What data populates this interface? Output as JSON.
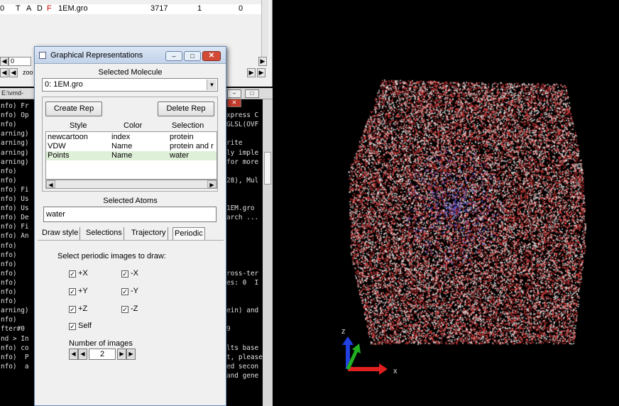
{
  "main_window": {
    "row": {
      "flag_t": "T",
      "flag_a": "A",
      "flag_d": "D",
      "flag_f": "F",
      "molecule": "1EM.gro",
      "atoms": "3717",
      "frames": "1",
      "vol": "0",
      "id": "0"
    },
    "frame_field": "0",
    "zoom_label": "zoo"
  },
  "console": {
    "title": "E:\\vmd-",
    "lines": [
      "nfo) Fr",
      "nfo) Op",
      "nfo)",
      "arning)",
      "arning)",
      "arning)",
      "arning)",
      "nfo)",
      "nfo)",
      "nfo) Fi",
      "nfo) Us",
      "nfo) Us",
      "nfo) De",
      "nfo) Fi",
      "nfo) An",
      "nfo)",
      "nfo)",
      "nfo)",
      "nfo)",
      "nfo)",
      "nfo)",
      "nfo)",
      "arning)",
      "nfo)",
      "fter#0",
      "nd > In",
      "nfo) co",
      "nfo)  P",
      "nfo)  a"
    ],
    "right_lines": [
      {
        "line": 1,
        "text": "xpress C"
      },
      {
        "line": 2,
        "text": "GLSL(OVF"
      },
      {
        "line": 4,
        "text": "rite"
      },
      {
        "line": 5,
        "text": "ly imple"
      },
      {
        "line": 6,
        "text": "for more"
      },
      {
        "line": 8,
        "text": "28), Mul"
      },
      {
        "line": 11,
        "text": "1EM.gro"
      },
      {
        "line": 12,
        "text": "arch ..."
      },
      {
        "line": 18,
        "text": "ross-ter"
      },
      {
        "line": 19,
        "text": "es: 0  I"
      },
      {
        "line": 22,
        "text": "ein) and"
      },
      {
        "line": 24,
        "text": "9"
      },
      {
        "line": 26,
        "text": "lts base"
      },
      {
        "line": 27,
        "text": "t, please"
      },
      {
        "line": 28,
        "text": "ed secon"
      },
      {
        "line": 29,
        "text": "and gene"
      }
    ]
  },
  "dialog": {
    "title": "Graphical Representations",
    "selected_molecule_label": "Selected Molecule",
    "molecule_value": "0: 1EM.gro",
    "create_rep": "Create Rep",
    "delete_rep": "Delete Rep",
    "columns": {
      "style": "Style",
      "color": "Color",
      "selection": "Selection"
    },
    "reps": [
      {
        "style": "newcartoon",
        "color": "index",
        "selection": "protein"
      },
      {
        "style": "VDW",
        "color": "Name",
        "selection": "protein and r"
      },
      {
        "style": "Points",
        "color": "Name",
        "selection": "water"
      }
    ],
    "selected_atoms_label": "Selected Atoms",
    "selected_atoms_value": "water",
    "tabs": [
      "Draw style",
      "Selections",
      "Trajectory",
      "Periodic"
    ],
    "active_tab": "Periodic",
    "periodic": {
      "heading": "Select periodic images to draw:",
      "checks": [
        {
          "label": "+X",
          "checked": true
        },
        {
          "label": "-X",
          "checked": true
        },
        {
          "label": "+Y",
          "checked": true
        },
        {
          "label": "-Y",
          "checked": true
        },
        {
          "label": "+Z",
          "checked": true
        },
        {
          "label": "-Z",
          "checked": true
        },
        {
          "label": "Self",
          "checked": true
        }
      ],
      "num_images_label": "Number of images",
      "num_images_value": "2"
    }
  },
  "viewport": {
    "axis_x_label": "x",
    "axis_z_label": "z",
    "colors": {
      "oxygen": "#d63c3c",
      "hydrogen": "#f2eaea",
      "protein": "#5a5ad8",
      "axis_x": "#e02020",
      "axis_y": "#20b020",
      "axis_z": "#2040e0"
    }
  }
}
